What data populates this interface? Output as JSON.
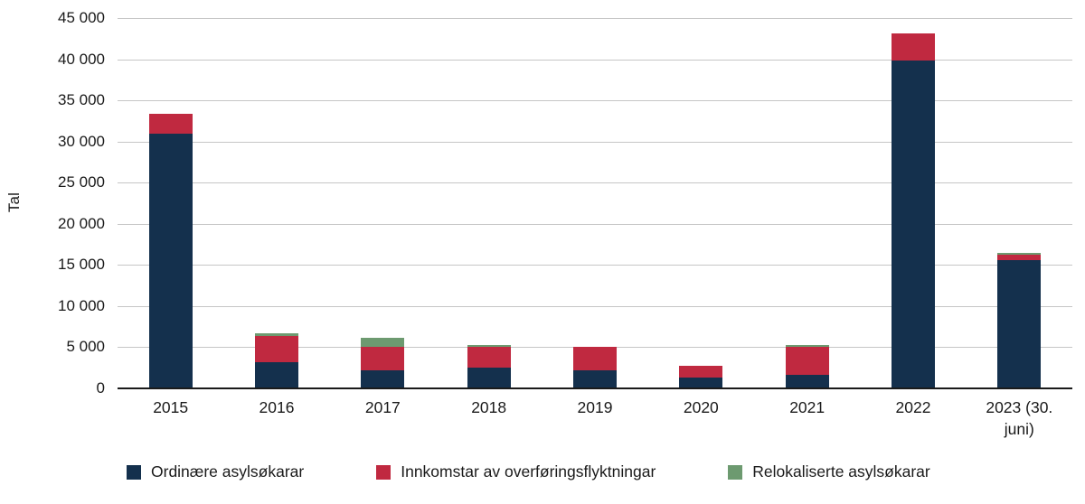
{
  "chart_data": {
    "type": "bar",
    "stacked": true,
    "title": "",
    "xlabel": "",
    "ylabel": "Tal",
    "ylim": [
      0,
      45000
    ],
    "grid": true,
    "legend_position": "bottom",
    "yticks": [
      {
        "value": 0,
        "label": "0"
      },
      {
        "value": 5000,
        "label": "5 000"
      },
      {
        "value": 10000,
        "label": "10 000"
      },
      {
        "value": 15000,
        "label": "15 000"
      },
      {
        "value": 20000,
        "label": "20 000"
      },
      {
        "value": 25000,
        "label": "25 000"
      },
      {
        "value": 30000,
        "label": "30 000"
      },
      {
        "value": 35000,
        "label": "35 000"
      },
      {
        "value": 40000,
        "label": "40 000"
      },
      {
        "value": 45000,
        "label": "45 000"
      }
    ],
    "categories": [
      "2015",
      "2016",
      "2017",
      "2018",
      "2019",
      "2020",
      "2021",
      "2022",
      "2023 (30. juni)"
    ],
    "series": [
      {
        "name": "Ordinære asylsøkarar",
        "color": "#14304d",
        "values": [
          30900,
          3200,
          2200,
          2500,
          2200,
          1300,
          1600,
          39800,
          15600
        ]
      },
      {
        "name": "Innkomstar av overføringsflyktningar",
        "color": "#c02940",
        "values": [
          2500,
          3200,
          2900,
          2500,
          2800,
          1400,
          3400,
          3300,
          700
        ]
      },
      {
        "name": "Relokaliserte asylsøkarar",
        "color": "#6d9a70",
        "values": [
          0,
          300,
          1000,
          300,
          0,
          0,
          250,
          0,
          200
        ]
      }
    ]
  }
}
